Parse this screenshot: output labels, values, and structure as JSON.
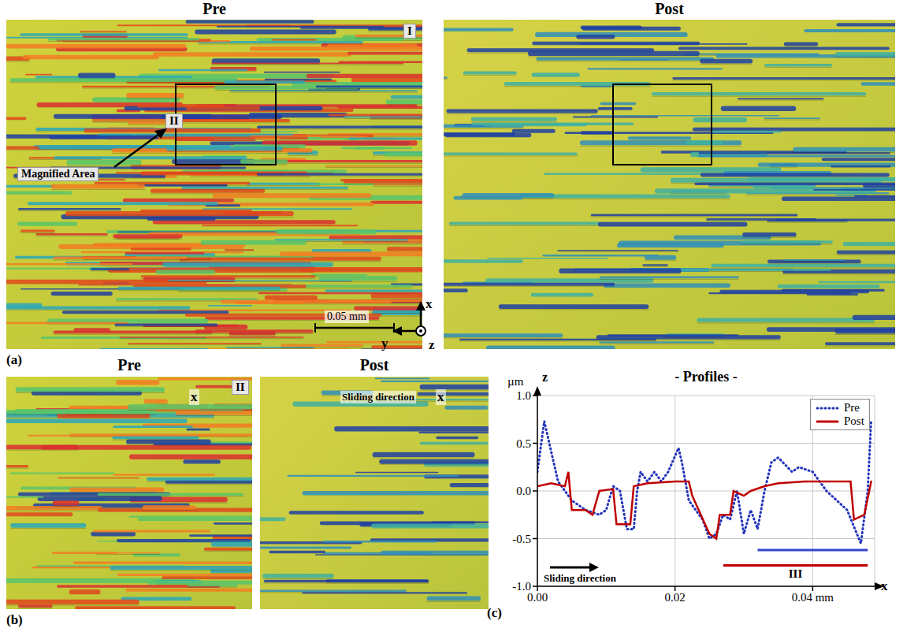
{
  "figure": {
    "panel_a": {
      "label": "(a)",
      "pre_title": "Pre",
      "post_title": "Post",
      "region_label": "I",
      "magnified_label": "II",
      "magnified_note": "Magnified Area",
      "scale_bar": "0.05 mm",
      "axes": [
        "x",
        "y",
        "z"
      ]
    },
    "panel_b": {
      "label": "(b)",
      "pre_title": "Pre",
      "post_title": "Post",
      "region_label": "II",
      "arrow_label": "x",
      "sliding_note": "Sliding direction"
    },
    "panel_c_label": "(c)"
  },
  "chart_data": {
    "type": "line",
    "title": "- Profiles -",
    "y_label": "µm",
    "y_axis_name": "z",
    "x_label": "x",
    "xlim": [
      0,
      0.049
    ],
    "xticks": [
      {
        "value": 0,
        "label": "0.00"
      },
      {
        "value": 0.02,
        "label": "0.02"
      },
      {
        "value": 0.04,
        "label": "0.04 mm"
      }
    ],
    "ylim": [
      -1,
      1
    ],
    "yticks": [
      {
        "value": -1,
        "label": "-1.0"
      },
      {
        "value": -0.5,
        "label": "-0.5"
      },
      {
        "value": 0,
        "label": "0.0"
      },
      {
        "value": 0.5,
        "label": "0.5"
      },
      {
        "value": 1,
        "label": "1.0"
      }
    ],
    "grid": true,
    "legend": "upper right",
    "series": [
      {
        "name": "Pre",
        "color": "#2233bb",
        "line_style": "dotted",
        "x": [
          0.0,
          0.001,
          0.003,
          0.004,
          0.005,
          0.007,
          0.009,
          0.01,
          0.011,
          0.012,
          0.013,
          0.014,
          0.0145,
          0.015,
          0.016,
          0.017,
          0.018,
          0.019,
          0.0205,
          0.021,
          0.022,
          0.024,
          0.025,
          0.026,
          0.027,
          0.028,
          0.029,
          0.03,
          0.031,
          0.032,
          0.033,
          0.034,
          0.035,
          0.037,
          0.038,
          0.04,
          0.042,
          0.045,
          0.047,
          0.048,
          0.0485
        ],
        "values": [
          0.2,
          0.73,
          0.1,
          0.0,
          -0.1,
          -0.2,
          -0.25,
          -0.2,
          0.05,
          0.0,
          -0.4,
          -0.4,
          0.0,
          0.2,
          0.1,
          0.2,
          0.1,
          0.2,
          0.45,
          0.3,
          -0.1,
          -0.3,
          -0.5,
          -0.45,
          -0.25,
          -0.3,
          0.0,
          -0.45,
          -0.2,
          -0.4,
          0.0,
          0.3,
          0.35,
          0.2,
          0.25,
          0.2,
          0.0,
          -0.2,
          -0.55,
          0.0,
          0.75
        ]
      },
      {
        "name": "Post",
        "color": "#c00000",
        "line_style": "solid",
        "x": [
          0.0,
          0.002,
          0.004,
          0.0045,
          0.005,
          0.007,
          0.008,
          0.009,
          0.011,
          0.0115,
          0.0135,
          0.014,
          0.016,
          0.02,
          0.022,
          0.0225,
          0.025,
          0.026,
          0.0265,
          0.028,
          0.0285,
          0.03,
          0.031,
          0.033,
          0.035,
          0.039,
          0.0455,
          0.046,
          0.0475,
          0.0485
        ],
        "values": [
          0.05,
          0.08,
          0.05,
          0.2,
          -0.2,
          -0.2,
          -0.25,
          0.0,
          0.02,
          -0.35,
          -0.35,
          0.05,
          0.08,
          0.1,
          0.1,
          -0.05,
          -0.45,
          -0.5,
          -0.25,
          -0.25,
          0.0,
          -0.05,
          0.0,
          0.05,
          0.08,
          0.1,
          0.1,
          -0.3,
          -0.25,
          0.1
        ]
      }
    ],
    "annotations": [
      {
        "text": "Sliding direction"
      },
      {
        "text": "III",
        "x": [
          0.027,
          0.048
        ],
        "y": -0.78,
        "color": "#c00000"
      },
      {
        "x": [
          0.032,
          0.048
        ],
        "y": -0.62,
        "color": "#3344cc"
      }
    ]
  }
}
